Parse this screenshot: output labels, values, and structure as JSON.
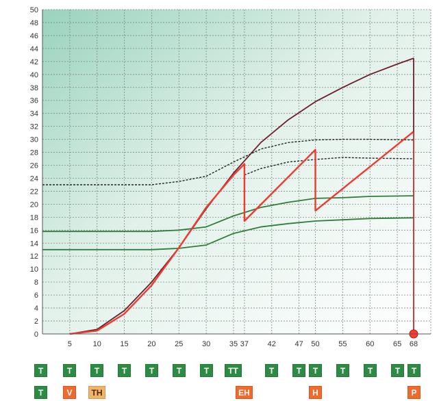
{
  "chart_data": {
    "type": "line",
    "xlim": [
      0,
      68
    ],
    "ylim": [
      0,
      50
    ],
    "grid": true,
    "x_ticks": [
      5,
      10,
      15,
      20,
      25,
      30,
      35,
      37,
      42,
      47,
      50,
      55,
      60,
      65,
      68
    ],
    "y_ticks": [
      0,
      2,
      4,
      6,
      8,
      10,
      12,
      14,
      16,
      18,
      20,
      22,
      24,
      26,
      28,
      30,
      32,
      34,
      36,
      38,
      40,
      42,
      44,
      46,
      48,
      50
    ],
    "series": [
      {
        "color": "#6b1f2b",
        "style": "solid",
        "points": [
          [
            5,
            0
          ],
          [
            10,
            0.7
          ],
          [
            15,
            3.6
          ],
          [
            20,
            8
          ],
          [
            25,
            13.3
          ],
          [
            30,
            19.3
          ],
          [
            35,
            24.8
          ],
          [
            40,
            29.5
          ],
          [
            45,
            33
          ],
          [
            50,
            35.8
          ],
          [
            55,
            38
          ],
          [
            60,
            40
          ],
          [
            65,
            41.6
          ],
          [
            68,
            42.5
          ]
        ]
      },
      {
        "color": "#f03a30",
        "style": "solid",
        "points": [
          [
            5,
            0
          ],
          [
            10,
            0.5
          ],
          [
            15,
            3.1
          ],
          [
            20,
            7.5
          ],
          [
            25,
            13.3
          ],
          [
            30,
            19.5
          ],
          [
            35,
            24.5
          ],
          [
            37,
            26.2
          ],
          [
            37,
            17.4
          ],
          [
            50,
            28.4
          ],
          [
            50,
            19
          ],
          [
            68,
            31.2
          ]
        ]
      },
      {
        "color": "#222222",
        "style": "dashed",
        "points": [
          [
            0,
            23
          ],
          [
            20,
            23
          ],
          [
            25,
            23.5
          ],
          [
            30,
            24.3
          ],
          [
            35,
            26.5
          ],
          [
            40,
            28.5
          ],
          [
            45,
            29.5
          ],
          [
            50,
            29.9
          ],
          [
            55,
            30
          ],
          [
            60,
            30
          ],
          [
            68,
            29.9
          ]
        ]
      },
      {
        "color": "#222222",
        "style": "dashed",
        "points": [
          [
            37,
            24.5
          ],
          [
            40,
            25.5
          ],
          [
            45,
            26.5
          ],
          [
            50,
            26.9
          ],
          [
            55,
            27.2
          ],
          [
            60,
            27.1
          ],
          [
            68,
            27
          ]
        ]
      },
      {
        "color": "#2f7d3a",
        "style": "solid",
        "points": [
          [
            0,
            15.8
          ],
          [
            20,
            15.8
          ],
          [
            25,
            16
          ],
          [
            30,
            16.5
          ],
          [
            35,
            18.2
          ],
          [
            40,
            19.5
          ],
          [
            45,
            20.3
          ],
          [
            50,
            20.9
          ],
          [
            55,
            21
          ],
          [
            60,
            21.2
          ],
          [
            68,
            21.3
          ]
        ]
      },
      {
        "color": "#2f7d3a",
        "style": "solid",
        "points": [
          [
            0,
            13
          ],
          [
            20,
            13
          ],
          [
            25,
            13.2
          ],
          [
            30,
            13.7
          ],
          [
            35,
            15.5
          ],
          [
            40,
            16.5
          ],
          [
            45,
            17
          ],
          [
            50,
            17.4
          ],
          [
            55,
            17.6
          ],
          [
            60,
            17.8
          ],
          [
            68,
            17.9
          ]
        ]
      }
    ],
    "vertical_line": {
      "x": 68,
      "color": "#6b1f2b"
    },
    "end_marker": {
      "x": 68,
      "y": 0,
      "color": "#ff3b2f"
    }
  },
  "badges_row1": [
    {
      "x": 0,
      "label": "T"
    },
    {
      "x": 5,
      "label": "T"
    },
    {
      "x": 10,
      "label": "T"
    },
    {
      "x": 15,
      "label": "T"
    },
    {
      "x": 20,
      "label": "T"
    },
    {
      "x": 25,
      "label": "T"
    },
    {
      "x": 30,
      "label": "T"
    },
    {
      "x": 35,
      "label": "TT"
    },
    {
      "x": 42,
      "label": "T"
    },
    {
      "x": 47,
      "label": "T"
    },
    {
      "x": 50,
      "label": "T"
    },
    {
      "x": 55,
      "label": "T"
    },
    {
      "x": 60,
      "label": "T"
    },
    {
      "x": 65,
      "label": "T"
    },
    {
      "x": 68,
      "label": "T"
    }
  ],
  "badges_row2": [
    {
      "x": 0,
      "label": "T",
      "color": "green"
    },
    {
      "x": 5,
      "label": "V",
      "color": "red"
    },
    {
      "x": 10,
      "label": "TH",
      "color": "tan"
    },
    {
      "x": 37,
      "label": "EH",
      "color": "red"
    },
    {
      "x": 50,
      "label": "H",
      "color": "red"
    },
    {
      "x": 68,
      "label": "P",
      "color": "red"
    }
  ]
}
